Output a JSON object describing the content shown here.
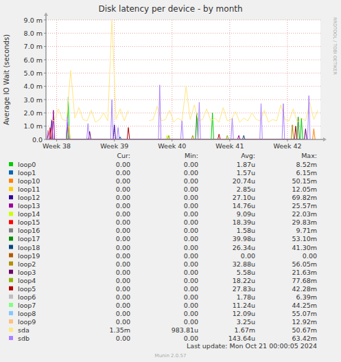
{
  "chart_data": {
    "type": "line",
    "title": "Disk latency per device - by month",
    "y_label": "Average IO Wait (seconds)",
    "side_label": "RRDTOOL / TOBI OETIKER",
    "footer": "Last update: Mon Oct 21 00:00:05 2024",
    "credit": "Munin 2.0.57",
    "grid": true,
    "xlim": [
      0,
      33.3
    ],
    "xticks": [
      {
        "value": 1.3,
        "label": "Week 38"
      },
      {
        "value": 8.3,
        "label": "Week 39"
      },
      {
        "value": 15.3,
        "label": "Week 40"
      },
      {
        "value": 22.3,
        "label": "Week 41"
      },
      {
        "value": 29.3,
        "label": "Week 42"
      }
    ],
    "ylim": [
      0,
      0.009
    ],
    "yticks": [
      {
        "value": 0,
        "label": "0.0"
      },
      {
        "value": 0.001,
        "label": "1.0 m"
      },
      {
        "value": 0.002,
        "label": "2.0 m"
      },
      {
        "value": 0.003,
        "label": "3.0 m"
      },
      {
        "value": 0.004,
        "label": "4.0 m"
      },
      {
        "value": 0.005,
        "label": "5.0 m"
      },
      {
        "value": 0.006,
        "label": "6.0 m"
      },
      {
        "value": 0.007,
        "label": "7.0 m"
      },
      {
        "value": 0.008,
        "label": "8.0 m"
      },
      {
        "value": 0.009,
        "label": "9.0 m"
      }
    ],
    "legend_table": {
      "headers": [
        "Cur:",
        "Min:",
        "Avg:",
        "Max:"
      ]
    },
    "series": [
      {
        "name": "loop0",
        "color": "#00CC00",
        "stats": [
          "0.00",
          "0.00",
          "1.87u",
          "8.52m"
        ],
        "x": [
          2.55,
          2.7,
          2.85,
          20.05,
          20.2,
          20.35,
          30.85,
          31.0,
          31.15
        ],
        "values": [
          0,
          0.0032,
          0,
          0,
          0.002,
          0,
          0,
          0.0016,
          0
        ]
      },
      {
        "name": "loop1",
        "color": "#0066B3",
        "stats": [
          "0.00",
          "0.00",
          "1.57u",
          "6.15m"
        ],
        "x": [
          8.85,
          9.0,
          9.15
        ],
        "values": [
          0,
          0.0002,
          0
        ]
      },
      {
        "name": "loop10",
        "color": "#FF8000",
        "stats": [
          "0.00",
          "0.00",
          "20.74u",
          "50.15m"
        ],
        "x": [
          32.35,
          32.5,
          32.65
        ],
        "values": [
          0,
          0.0008,
          0
        ]
      },
      {
        "name": "loop11",
        "color": "#FFCC00",
        "stats": [
          "0.00",
          "0.00",
          "2.85u",
          "12.05m"
        ],
        "x": [
          2.65,
          2.8,
          2.95
        ],
        "values": [
          0,
          0.001,
          0
        ]
      },
      {
        "name": "loop12",
        "color": "#330099",
        "stats": [
          "0.00",
          "0.00",
          "27.10u",
          "69.82m"
        ],
        "x": [
          0.55,
          0.7,
          0.85,
          8.15,
          8.3,
          8.45
        ],
        "values": [
          0,
          0.0015,
          0,
          0,
          0.0011,
          0
        ]
      },
      {
        "name": "loop13",
        "color": "#990099",
        "stats": [
          "0.00",
          "0.00",
          "14.76u",
          "25.57m"
        ],
        "x": [
          0.75,
          0.9,
          1.05,
          23.25,
          23.4,
          23.55
        ],
        "values": [
          0,
          0.0022,
          0,
          0,
          0.0003,
          0
        ]
      },
      {
        "name": "loop14",
        "color": "#CCFF00",
        "stats": [
          "0.00",
          "0.00",
          "9.09u",
          "22.03m"
        ],
        "x": [
          14.55,
          14.7,
          14.85
        ],
        "values": [
          0,
          0.0003,
          0
        ]
      },
      {
        "name": "loop15",
        "color": "#FF0000",
        "stats": [
          "0.00",
          "0.00",
          "18.39u",
          "29.83m"
        ],
        "x": [
          0.35,
          0.5,
          0.65
        ],
        "values": [
          0,
          0.0009,
          0
        ]
      },
      {
        "name": "loop16",
        "color": "#808080",
        "stats": [
          "0.00",
          "0.00",
          "1.58u",
          "9.71m"
        ],
        "x": [],
        "values": []
      },
      {
        "name": "loop17",
        "color": "#008F00",
        "stats": [
          "0.00",
          "0.00",
          "39.98u",
          "53.10m"
        ],
        "x": [
          18.15,
          18.3,
          18.45,
          30.45,
          30.6,
          30.75
        ],
        "values": [
          0,
          0.002,
          0,
          0,
          0.0017,
          0
        ]
      },
      {
        "name": "loop18",
        "color": "#00487D",
        "stats": [
          "0.00",
          "0.00",
          "26.34u",
          "41.30m"
        ],
        "x": [
          23.85,
          24.0,
          24.15
        ],
        "values": [
          0,
          0.0003,
          0
        ]
      },
      {
        "name": "loop19",
        "color": "#B35A00",
        "stats": [
          "0.00",
          "0.00",
          "0.00",
          "0.00"
        ],
        "x": [],
        "values": []
      },
      {
        "name": "loop2",
        "color": "#B38F00",
        "stats": [
          "0.00",
          "0.00",
          "32.88u",
          "56.05m"
        ],
        "x": [
          17.65,
          17.8,
          17.95,
          29.75,
          29.9,
          30.05
        ],
        "values": [
          0,
          0.0003,
          0,
          0,
          0.0011,
          0
        ]
      },
      {
        "name": "loop3",
        "color": "#6B006B",
        "stats": [
          "0.00",
          "0.00",
          "5.58u",
          "21.63m"
        ],
        "x": [
          2.45,
          2.6,
          2.75,
          5.15,
          5.3,
          5.45,
          31.35,
          31.5,
          31.65
        ],
        "values": [
          0,
          0.0013,
          0,
          0,
          0.0006,
          0,
          0,
          0.0008,
          0
        ]
      },
      {
        "name": "loop4",
        "color": "#8FB300",
        "stats": [
          "0.00",
          "0.00",
          "18.22u",
          "77.68m"
        ],
        "x": [
          14.75,
          14.9,
          15.05,
          21.85,
          22.0,
          22.15
        ],
        "values": [
          0,
          0.0003,
          0,
          0,
          0.0003,
          0
        ]
      },
      {
        "name": "loop5",
        "color": "#B30000",
        "stats": [
          "0.00",
          "0.00",
          "27.83u",
          "42.28m"
        ],
        "x": [
          0.15,
          0.3,
          0.45,
          9.85,
          10.0,
          10.15,
          20.85,
          21.0,
          21.15,
          30.15,
          30.3,
          30.45
        ],
        "values": [
          0,
          0.0006,
          0,
          0,
          0.0009,
          0,
          0,
          0.0004,
          0,
          0,
          0.001,
          0
        ]
      },
      {
        "name": "loop6",
        "color": "#BEBEBE",
        "stats": [
          "0.00",
          "0.00",
          "1.78u",
          "6.39m"
        ],
        "x": [],
        "values": []
      },
      {
        "name": "loop7",
        "color": "#80FF80",
        "stats": [
          "0.00",
          "0.00",
          "11.24u",
          "44.25m"
        ],
        "x": [],
        "values": []
      },
      {
        "name": "loop8",
        "color": "#80C9FF",
        "stats": [
          "0.00",
          "0.00",
          "12.09u",
          "55.07m"
        ],
        "x": [],
        "values": []
      },
      {
        "name": "loop9",
        "color": "#FFC080",
        "stats": [
          "0.00",
          "0.00",
          "3.25u",
          "12.92m"
        ],
        "x": [],
        "values": []
      },
      {
        "name": "sda",
        "color": "#FFE680",
        "stats": [
          "1.35m",
          "983.81u",
          "1.67m",
          "50.67m"
        ],
        "x": [
          0.5,
          1,
          1.5,
          2,
          2.5,
          3,
          3.5,
          4,
          4.5,
          5,
          5.5,
          6,
          6.5,
          7,
          7.5,
          8,
          8.5,
          9,
          9.5,
          10,
          10.5,
          11,
          11.5,
          12,
          12.5,
          13,
          13.5,
          14,
          14.5,
          15,
          15.5,
          16,
          16.5,
          17,
          17.5,
          18,
          18.5,
          19,
          19.5,
          20,
          20.5,
          21,
          21.5,
          22,
          22.5,
          23,
          23.5,
          24,
          24.5,
          25,
          25.5,
          26,
          26.5,
          27,
          27.5,
          28,
          28.5,
          29,
          29.5,
          30,
          30.5,
          31,
          31.5,
          32,
          32.5,
          33
        ],
        "values": [
          0.0015,
          0.0014,
          0.0023,
          0.0015,
          0.0014,
          0.0052,
          0.0016,
          0.0024,
          0.0015,
          0.0014,
          0.0022,
          0.0013,
          0.0015,
          0.002,
          0.0014,
          0.009,
          0.0015,
          0.0023,
          0.0014,
          0.0022,
          null,
          null,
          null,
          null,
          0.0014,
          0.0015,
          0.0025,
          0.0014,
          0.0015,
          0.0022,
          0.0013,
          0.0016,
          0.0014,
          0.004,
          0.0015,
          0.0026,
          0.0014,
          0.0015,
          0.0023,
          0.0014,
          0.0016,
          0.0013,
          0.0024,
          0.0014,
          0.0015,
          0.0021,
          0.0013,
          0.0016,
          0.0014,
          0.002,
          0.0015,
          0.0014,
          0.0022,
          0.0013,
          0.0015,
          0.0014,
          0.0026,
          0.0015,
          0.0014,
          0.0023,
          0.0013,
          0.0016,
          0.0014,
          0.0028,
          0.0015,
          0.0022
        ]
      },
      {
        "name": "sdb",
        "color": "#AA80FF",
        "stats": [
          "0.00",
          "0.00",
          "143.64u",
          "63.42m"
        ],
        "x": [
          0.1,
          0.25,
          0.4,
          2.45,
          2.6,
          2.75,
          4.95,
          5.1,
          5.25,
          7.85,
          8.0,
          8.15,
          8.6,
          8.75,
          8.9,
          13.65,
          13.8,
          13.95,
          16.35,
          16.5,
          16.65,
          18.45,
          18.6,
          18.75,
          22.45,
          22.6,
          22.75,
          25.95,
          26.1,
          26.25,
          28.65,
          28.8,
          28.95,
          31.75,
          31.9,
          32.05
        ],
        "values": [
          0,
          0.0007,
          0,
          0,
          0.0017,
          0,
          0,
          0.0012,
          0,
          0,
          0.003,
          0,
          0,
          0.0009,
          0,
          0,
          0.0041,
          0,
          0,
          0.0014,
          0,
          0,
          0.0028,
          0,
          0,
          0.0016,
          0,
          0,
          0.0027,
          0,
          0,
          0.0027,
          0,
          0,
          0.0033,
          0
        ]
      }
    ]
  }
}
